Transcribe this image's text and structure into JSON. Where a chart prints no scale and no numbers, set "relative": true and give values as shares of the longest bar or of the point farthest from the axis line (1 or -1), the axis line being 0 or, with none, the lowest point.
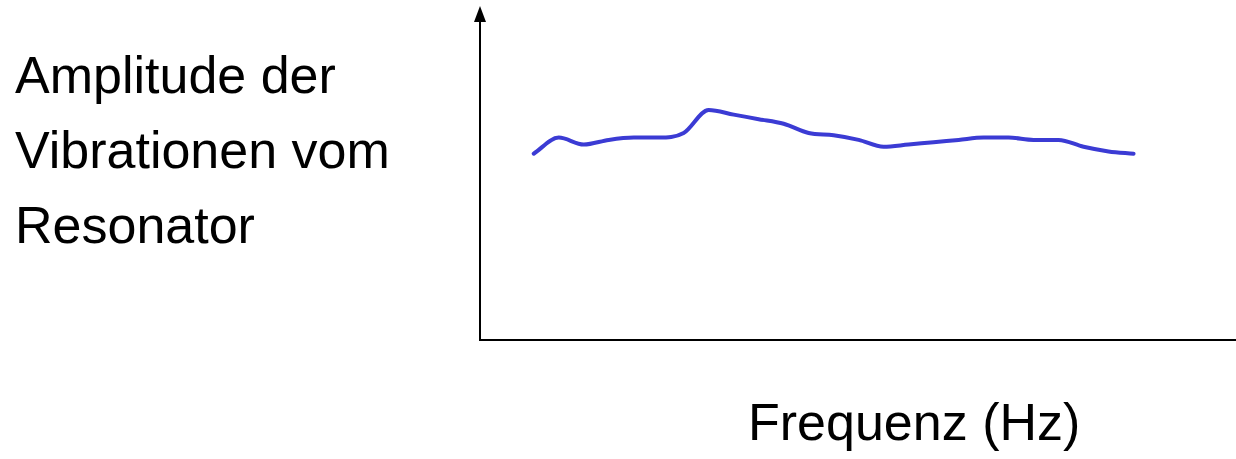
{
  "chart_data": {
    "type": "line",
    "relative": true,
    "xlabel": "Frequenz (Hz)",
    "ylabel": "Amplitude der Vibrationen vom Resonator",
    "tick_labels": false,
    "grid": false,
    "legend": false,
    "marker": "none",
    "line_style": "solid",
    "categories": [
      null,
      null,
      null,
      null,
      null,
      null,
      null,
      null,
      null,
      null,
      null,
      null,
      null,
      null,
      null,
      null,
      null,
      null,
      null,
      null,
      null,
      null,
      null,
      null,
      null
    ],
    "series": [
      {
        "color": "#3b3bd4",
        "values": [
          0.81,
          0.88,
          0.85,
          0.87,
          0.88,
          0.88,
          0.9,
          1,
          0.98,
          0.96,
          0.94,
          0.9,
          0.89,
          0.87,
          0.84,
          0.85,
          0.86,
          0.87,
          0.88,
          0.88,
          0.87,
          0.87,
          0.84,
          0.82,
          0.81
        ]
      }
    ]
  }
}
